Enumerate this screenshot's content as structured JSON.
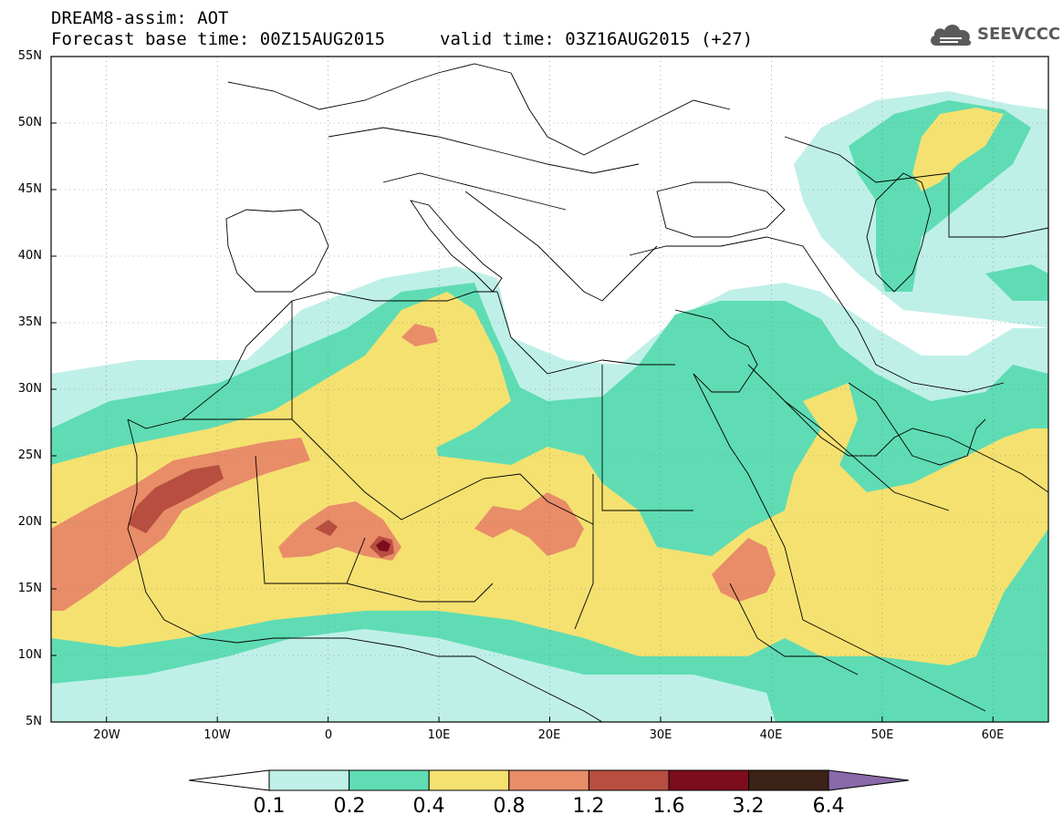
{
  "header": {
    "title": "DREAM8-assim: AOT",
    "base_time": "Forecast base time: 00Z15AUG2015",
    "valid_time": "valid time: 03Z16AUG2015 (+27)",
    "logo_text": "SEEVCCC"
  },
  "axes": {
    "lat_labels": [
      "55N",
      "50N",
      "45N",
      "40N",
      "35N",
      "30N",
      "25N",
      "20N",
      "15N",
      "10N",
      "5N"
    ],
    "lon_labels": [
      "20W",
      "10W",
      "0",
      "10E",
      "20E",
      "30E",
      "40E",
      "50E",
      "60E"
    ]
  },
  "colorbar": {
    "labels": [
      "0.1",
      "0.2",
      "0.4",
      "0.8",
      "1.2",
      "1.6",
      "3.2",
      "6.4"
    ],
    "colors": [
      "#bff0e8",
      "#5fdcb4",
      "#f5e170",
      "#e88d68",
      "#b84e40",
      "#7d0c1c",
      "#3c2216",
      "#8a69a8"
    ]
  },
  "map": {
    "lon_range": [
      -25,
      65
    ],
    "lat_range": [
      5,
      55
    ],
    "land_background": "#ffffff"
  }
}
